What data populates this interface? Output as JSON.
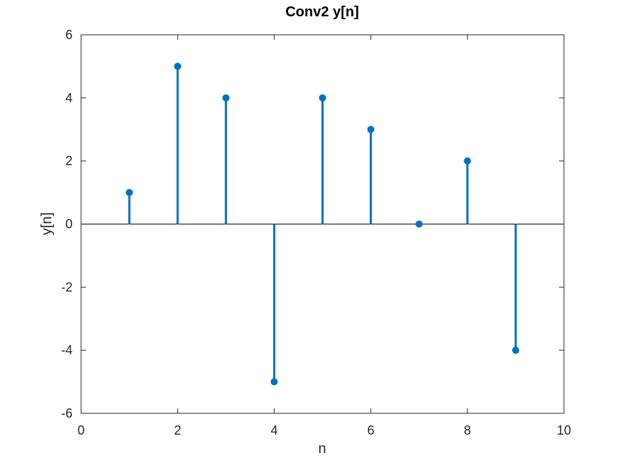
{
  "chart_data": {
    "type": "stem",
    "title": "Conv2 y[n]",
    "xlabel": "n",
    "ylabel": "y[n]",
    "xlim": [
      0,
      10
    ],
    "ylim": [
      -6,
      6
    ],
    "xticks": [
      0,
      2,
      4,
      6,
      8,
      10
    ],
    "yticks": [
      -6,
      -4,
      -2,
      0,
      2,
      4,
      6
    ],
    "xtick_labels": [
      "0",
      "2",
      "4",
      "6",
      "8",
      "10"
    ],
    "ytick_labels": [
      "-6",
      "-4",
      "-2",
      "0",
      "2",
      "4",
      "6"
    ],
    "grid": false,
    "baseline": 0,
    "x": [
      1,
      2,
      3,
      4,
      5,
      6,
      7,
      8,
      9
    ],
    "y": [
      1,
      5,
      4,
      -5,
      4,
      3,
      0,
      2,
      -4
    ],
    "color": "#0072BD"
  }
}
